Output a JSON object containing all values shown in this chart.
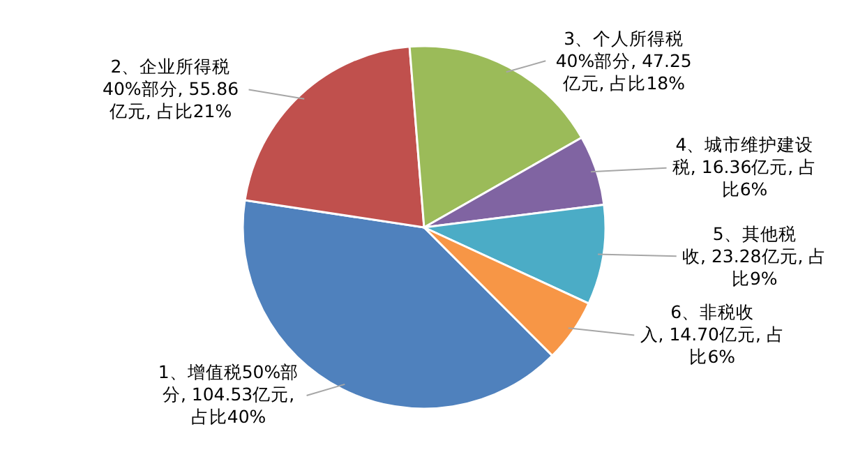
{
  "chart_data": {
    "type": "pie",
    "categories": [
      "1、增值税50%部分",
      "2、企业所得税40%部分",
      "3、个人所得税40%部分",
      "4、城市维护建设税",
      "5、其他税收",
      "6、非税收入"
    ],
    "values": [
      104.53,
      55.86,
      47.25,
      16.36,
      23.28,
      14.7
    ],
    "value_labels": [
      "104.53亿元, 占比40%",
      "55.86亿元, 占比21%",
      "47.25亿元, 占比18%",
      "16.36亿元, 占比6%",
      "23.28亿元, 占比9%",
      "14.70亿元, 占比6%"
    ],
    "colors": [
      "#4f81bd",
      "#c0504d",
      "#9bbb59",
      "#8064a2",
      "#4bacc6",
      "#f79646"
    ],
    "legend": false
  }
}
